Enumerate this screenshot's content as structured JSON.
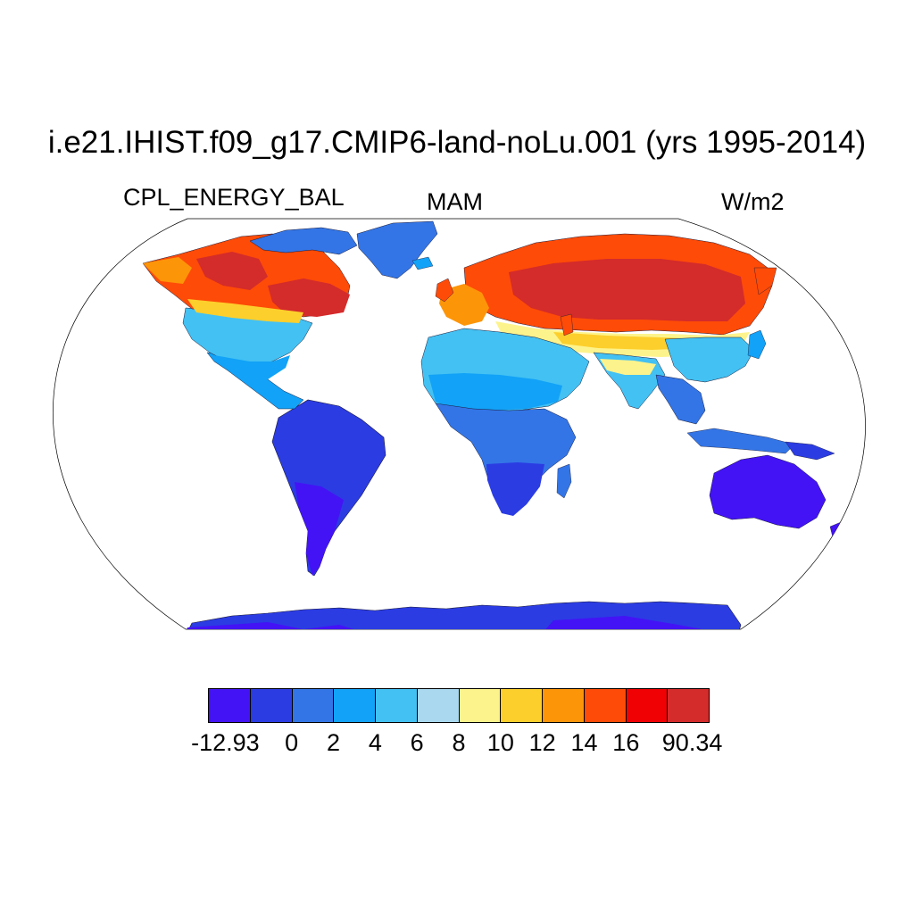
{
  "title": "i.e21.IHIST.f09_g17.CMIP6-land-noLu.001 (yrs 1995-2014)",
  "left_label": "CPL_ENERGY_BAL",
  "center_label": "MAM",
  "right_label": "W/m2",
  "colors": {
    "ocean": "#ffffff",
    "outline": "#000000"
  },
  "colorbar": {
    "colors": [
      "#4313f5",
      "#2b3ce3",
      "#3375e6",
      "#12a2f7",
      "#43c1f2",
      "#a9d8ef",
      "#fdf38c",
      "#fdcf2c",
      "#fd9509",
      "#fe4b07",
      "#f00103",
      "#d42b2b"
    ],
    "labels": [
      "-12.93",
      "0",
      "2",
      "4",
      "6",
      "8",
      "10",
      "12",
      "14",
      "16",
      "90.34"
    ]
  },
  "regions": [
    {
      "name": "Antarctica",
      "value": -12.93
    },
    {
      "name": "South America",
      "value": -12.93
    },
    {
      "name": "Australia",
      "value": -12.93
    },
    {
      "name": "Southern Africa",
      "value": -5
    },
    {
      "name": "Central Africa",
      "value": 0
    },
    {
      "name": "Sahara / Arabia",
      "value": 4
    },
    {
      "name": "Central America",
      "value": 4
    },
    {
      "name": "United States",
      "value": 6
    },
    {
      "name": "Canada",
      "value": 20
    },
    {
      "name": "Alaska",
      "value": 14
    },
    {
      "name": "Greenland",
      "value": 2
    },
    {
      "name": "Europe",
      "value": 16
    },
    {
      "name": "Siberia",
      "value": 20
    },
    {
      "name": "Central Asia",
      "value": 10
    },
    {
      "name": "South Asia",
      "value": 4
    },
    {
      "name": "Southeast Asia",
      "value": 2
    }
  ]
}
